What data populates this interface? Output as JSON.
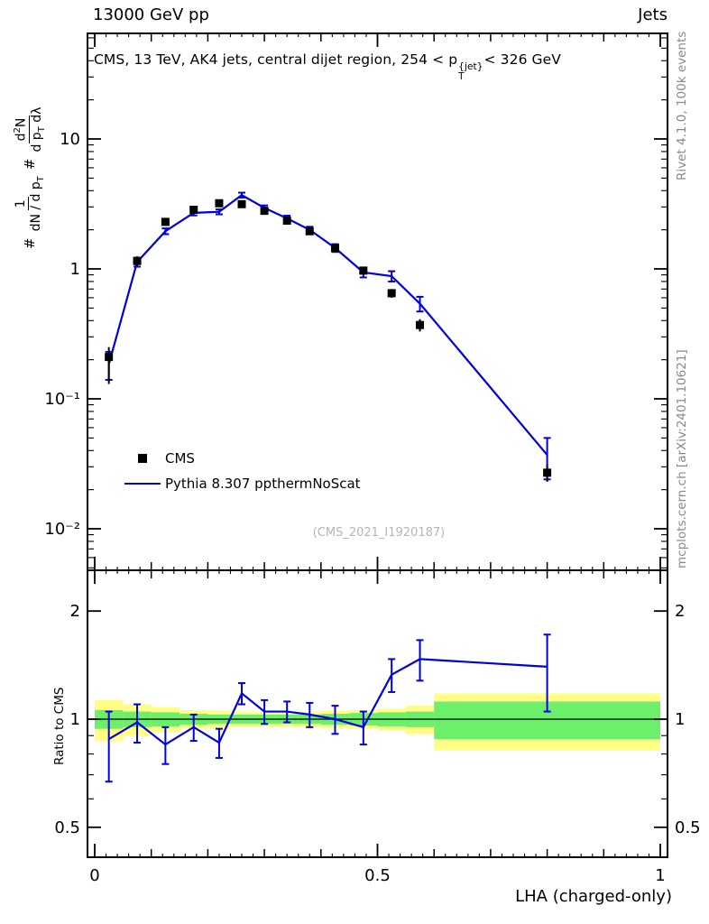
{
  "header": {
    "left": "13000 GeV pp",
    "right": "Jets"
  },
  "meta": {
    "rivet": "Rivet 4.1.0, 100k events",
    "mcplots": "mcplots.cern.ch [arXiv:2401.10621]",
    "watermark": "(CMS_2021_I1920187)"
  },
  "chart_data": {
    "type": "line",
    "subtype": "data-vs-mc comparison with ratio panel",
    "title_parts": {
      "prefix": "CMS, 13 TeV, AK4 jets, central dijet region, 254 < p",
      "p_sup": "{jet}",
      "p_sub": "T",
      "suffix": "< 326 GeV"
    },
    "x_label": "LHA (charged-only)",
    "x_range": [
      0,
      1
    ],
    "x_ticks": [
      {
        "v": 0,
        "label": "0"
      },
      {
        "v": 0.5,
        "label": "0.5"
      },
      {
        "v": 1,
        "label": "1"
      }
    ],
    "bin_edges": [
      0,
      0.05,
      0.1,
      0.15,
      0.2,
      0.24,
      0.28,
      0.32,
      0.36,
      0.4,
      0.45,
      0.5,
      0.55,
      0.6,
      1.0
    ],
    "legend_position": "inside-left-middle",
    "grid": false,
    "main": {
      "y_scale": "log",
      "y_range": [
        0.005,
        65
      ],
      "y_ticks": [
        {
          "v": 10,
          "label": "10"
        },
        {
          "v": 1,
          "label": "1"
        },
        {
          "v": 0.1,
          "label": "10⁻¹"
        },
        {
          "v": 0.01,
          "label": "10⁻²"
        }
      ],
      "ylabel_parts": {
        "hash1": "#",
        "num1": "1",
        "den1a": "dN / d p",
        "den1sub": "T",
        "hash2": "#",
        "num2a": "d",
        "num2sup": "2",
        "num2b": "N",
        "den2a": "d p",
        "den2sub": "T",
        "den2b": " dλ"
      },
      "series": [
        {
          "name": "CMS",
          "type": "scatter",
          "marker": "filled-square",
          "color": "#000000",
          "points": [
            {
              "x": 0.025,
              "y": 0.21,
              "lo": 0.08,
              "hi": 0.04
            },
            {
              "x": 0.075,
              "y": 1.15,
              "lo": 0.1,
              "hi": 0.1
            },
            {
              "x": 0.125,
              "y": 2.3,
              "lo": 0.12,
              "hi": 0.12
            },
            {
              "x": 0.175,
              "y": 2.85,
              "lo": 0.15,
              "hi": 0.15
            },
            {
              "x": 0.22,
              "y": 3.2,
              "lo": 0.16,
              "hi": 0.16
            },
            {
              "x": 0.26,
              "y": 3.15,
              "lo": 0.16,
              "hi": 0.16
            },
            {
              "x": 0.3,
              "y": 2.8,
              "lo": 0.14,
              "hi": 0.14
            },
            {
              "x": 0.34,
              "y": 2.35,
              "lo": 0.12,
              "hi": 0.12
            },
            {
              "x": 0.38,
              "y": 1.95,
              "lo": 0.1,
              "hi": 0.1
            },
            {
              "x": 0.425,
              "y": 1.45,
              "lo": 0.09,
              "hi": 0.09
            },
            {
              "x": 0.475,
              "y": 0.97,
              "lo": 0.07,
              "hi": 0.07
            },
            {
              "x": 0.525,
              "y": 0.65,
              "lo": 0.05,
              "hi": 0.05
            },
            {
              "x": 0.575,
              "y": 0.37,
              "lo": 0.04,
              "hi": 0.04
            },
            {
              "x": 0.8,
              "y": 0.027,
              "lo": 0.004,
              "hi": 0.004
            }
          ]
        },
        {
          "name": "Pythia 8.307 ppthermNoScat",
          "type": "line",
          "color": "#0000e0",
          "points": [
            {
              "x": 0.025,
              "y": 0.185,
              "lo": 0.045,
              "hi": 0.045
            },
            {
              "x": 0.075,
              "y": 1.13,
              "lo": 0.09,
              "hi": 0.09
            },
            {
              "x": 0.125,
              "y": 1.95,
              "lo": 0.1,
              "hi": 0.1
            },
            {
              "x": 0.175,
              "y": 2.7,
              "lo": 0.12,
              "hi": 0.12
            },
            {
              "x": 0.22,
              "y": 2.75,
              "lo": 0.12,
              "hi": 0.12
            },
            {
              "x": 0.26,
              "y": 3.7,
              "lo": 0.16,
              "hi": 0.16
            },
            {
              "x": 0.3,
              "y": 2.95,
              "lo": 0.13,
              "hi": 0.13
            },
            {
              "x": 0.34,
              "y": 2.45,
              "lo": 0.12,
              "hi": 0.12
            },
            {
              "x": 0.38,
              "y": 2.0,
              "lo": 0.11,
              "hi": 0.11
            },
            {
              "x": 0.425,
              "y": 1.45,
              "lo": 0.1,
              "hi": 0.1
            },
            {
              "x": 0.475,
              "y": 0.94,
              "lo": 0.08,
              "hi": 0.08
            },
            {
              "x": 0.525,
              "y": 0.88,
              "lo": 0.08,
              "hi": 0.08
            },
            {
              "x": 0.575,
              "y": 0.54,
              "lo": 0.07,
              "hi": 0.07
            },
            {
              "x": 0.8,
              "y": 0.037,
              "lo": 0.013,
              "hi": 0.013
            }
          ]
        }
      ]
    },
    "ratio": {
      "label": "Ratio to CMS",
      "y_scale": "log",
      "y_range": [
        0.41,
        2.6
      ],
      "y_ticks": [
        {
          "v": 2,
          "label": "2"
        },
        {
          "v": 1,
          "label": "1"
        },
        {
          "v": 0.5,
          "label": "0.5"
        }
      ],
      "line": {
        "color": "#0000e0",
        "points": [
          {
            "x": 0.025,
            "y": 0.88,
            "lo": 0.21,
            "hi": 0.17
          },
          {
            "x": 0.075,
            "y": 0.98,
            "lo": 0.12,
            "hi": 0.12
          },
          {
            "x": 0.125,
            "y": 0.85,
            "lo": 0.1,
            "hi": 0.1
          },
          {
            "x": 0.175,
            "y": 0.95,
            "lo": 0.08,
            "hi": 0.08
          },
          {
            "x": 0.22,
            "y": 0.86,
            "lo": 0.08,
            "hi": 0.08
          },
          {
            "x": 0.26,
            "y": 1.18,
            "lo": 0.08,
            "hi": 0.08
          },
          {
            "x": 0.3,
            "y": 1.05,
            "lo": 0.08,
            "hi": 0.08
          },
          {
            "x": 0.34,
            "y": 1.05,
            "lo": 0.07,
            "hi": 0.07
          },
          {
            "x": 0.38,
            "y": 1.03,
            "lo": 0.08,
            "hi": 0.08
          },
          {
            "x": 0.425,
            "y": 1.0,
            "lo": 0.09,
            "hi": 0.09
          },
          {
            "x": 0.475,
            "y": 0.95,
            "lo": 0.1,
            "hi": 0.1
          },
          {
            "x": 0.525,
            "y": 1.33,
            "lo": 0.14,
            "hi": 0.14
          },
          {
            "x": 0.575,
            "y": 1.47,
            "lo": 0.19,
            "hi": 0.19
          },
          {
            "x": 0.8,
            "y": 1.4,
            "lo": 0.35,
            "hi": 0.32
          }
        ]
      },
      "bands": {
        "yellow_color": "#ffff85",
        "green_color": "#6cf06c",
        "bins": [
          {
            "lo": 0.0,
            "hi": 0.05,
            "yellow": 0.13,
            "green": 0.06
          },
          {
            "lo": 0.05,
            "hi": 0.1,
            "yellow": 0.1,
            "green": 0.05
          },
          {
            "lo": 0.1,
            "hi": 0.15,
            "yellow": 0.08,
            "green": 0.045
          },
          {
            "lo": 0.15,
            "hi": 0.2,
            "yellow": 0.06,
            "green": 0.035
          },
          {
            "lo": 0.2,
            "hi": 0.24,
            "yellow": 0.055,
            "green": 0.03
          },
          {
            "lo": 0.24,
            "hi": 0.28,
            "yellow": 0.05,
            "green": 0.03
          },
          {
            "lo": 0.28,
            "hi": 0.32,
            "yellow": 0.05,
            "green": 0.03
          },
          {
            "lo": 0.32,
            "hi": 0.36,
            "yellow": 0.05,
            "green": 0.03
          },
          {
            "lo": 0.36,
            "hi": 0.4,
            "yellow": 0.05,
            "green": 0.03
          },
          {
            "lo": 0.4,
            "hi": 0.45,
            "yellow": 0.055,
            "green": 0.035
          },
          {
            "lo": 0.45,
            "hi": 0.5,
            "yellow": 0.06,
            "green": 0.04
          },
          {
            "lo": 0.5,
            "hi": 0.55,
            "yellow": 0.07,
            "green": 0.045
          },
          {
            "lo": 0.55,
            "hi": 0.6,
            "yellow": 0.09,
            "green": 0.05
          },
          {
            "lo": 0.6,
            "hi": 1.0,
            "yellow": 0.18,
            "green": 0.12
          }
        ]
      }
    }
  }
}
